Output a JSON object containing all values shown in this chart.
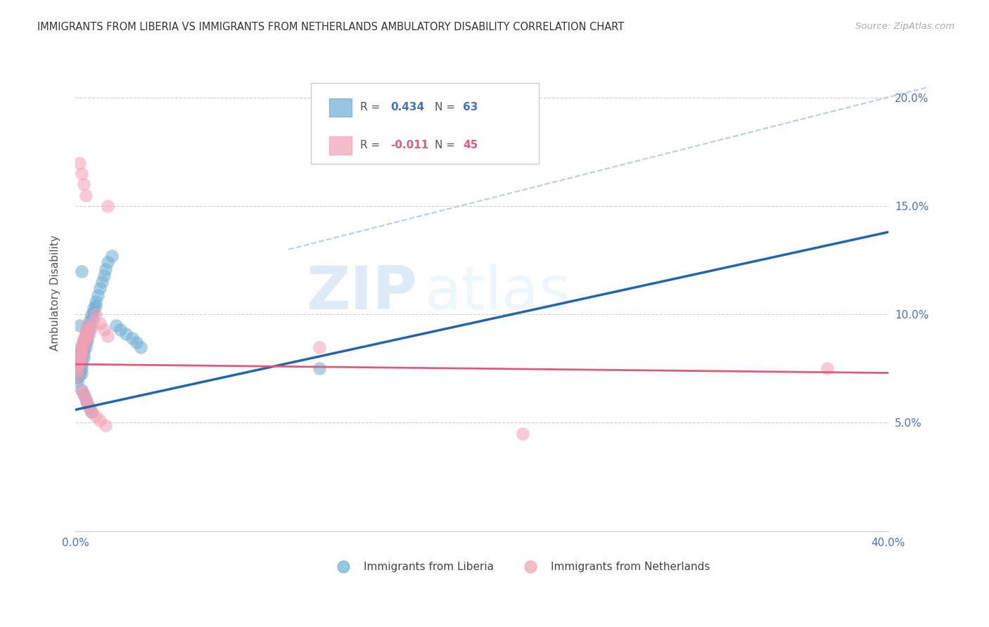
{
  "title": "IMMIGRANTS FROM LIBERIA VS IMMIGRANTS FROM NETHERLANDS AMBULATORY DISABILITY CORRELATION CHART",
  "source": "Source: ZipAtlas.com",
  "ylabel": "Ambulatory Disability",
  "xlim": [
    0.0,
    0.4
  ],
  "ylim": [
    0.0,
    0.22
  ],
  "color_liberia": "#6baed6",
  "color_liberia_line": "#2166ac",
  "color_netherlands": "#f4a0b5",
  "color_netherlands_line": "#e05a7a",
  "watermark_zip": "ZIP",
  "watermark_atlas": "atlas",
  "lib_x": [
    0.001,
    0.001,
    0.001,
    0.001,
    0.001,
    0.001,
    0.002,
    0.002,
    0.002,
    0.002,
    0.002,
    0.002,
    0.002,
    0.003,
    0.003,
    0.003,
    0.003,
    0.003,
    0.003,
    0.003,
    0.004,
    0.004,
    0.004,
    0.004,
    0.004,
    0.005,
    0.005,
    0.005,
    0.005,
    0.006,
    0.006,
    0.006,
    0.006,
    0.007,
    0.007,
    0.007,
    0.008,
    0.008,
    0.009,
    0.009,
    0.01,
    0.01,
    0.011,
    0.012,
    0.013,
    0.014,
    0.015,
    0.016,
    0.018,
    0.02,
    0.022,
    0.025,
    0.028,
    0.03,
    0.032,
    0.003,
    0.004,
    0.005,
    0.006,
    0.007,
    0.008,
    0.12,
    0.003
  ],
  "lib_y": [
    0.08,
    0.078,
    0.075,
    0.073,
    0.071,
    0.069,
    0.082,
    0.08,
    0.078,
    0.076,
    0.074,
    0.072,
    0.095,
    0.085,
    0.083,
    0.081,
    0.079,
    0.077,
    0.075,
    0.073,
    0.088,
    0.086,
    0.084,
    0.082,
    0.08,
    0.091,
    0.089,
    0.087,
    0.085,
    0.094,
    0.092,
    0.09,
    0.088,
    0.097,
    0.095,
    0.093,
    0.1,
    0.098,
    0.103,
    0.101,
    0.106,
    0.104,
    0.109,
    0.112,
    0.115,
    0.118,
    0.121,
    0.124,
    0.127,
    0.095,
    0.093,
    0.091,
    0.089,
    0.087,
    0.085,
    0.065,
    0.063,
    0.061,
    0.059,
    0.057,
    0.055,
    0.075,
    0.12
  ],
  "neth_x": [
    0.001,
    0.001,
    0.001,
    0.001,
    0.001,
    0.002,
    0.002,
    0.002,
    0.002,
    0.003,
    0.003,
    0.003,
    0.003,
    0.004,
    0.004,
    0.004,
    0.005,
    0.005,
    0.005,
    0.006,
    0.006,
    0.007,
    0.008,
    0.009,
    0.01,
    0.012,
    0.014,
    0.016,
    0.002,
    0.003,
    0.004,
    0.005,
    0.003,
    0.004,
    0.005,
    0.006,
    0.007,
    0.008,
    0.01,
    0.012,
    0.015,
    0.12,
    0.22,
    0.37,
    0.016
  ],
  "neth_y": [
    0.08,
    0.078,
    0.076,
    0.074,
    0.072,
    0.083,
    0.081,
    0.079,
    0.077,
    0.086,
    0.084,
    0.082,
    0.08,
    0.089,
    0.087,
    0.085,
    0.092,
    0.09,
    0.088,
    0.095,
    0.093,
    0.091,
    0.094,
    0.097,
    0.1,
    0.096,
    0.093,
    0.09,
    0.17,
    0.165,
    0.16,
    0.155,
    0.065,
    0.063,
    0.061,
    0.059,
    0.057,
    0.055,
    0.053,
    0.051,
    0.049,
    0.085,
    0.045,
    0.075,
    0.15
  ],
  "lib_line": [
    [
      0.0,
      0.4
    ],
    [
      0.056,
      0.138
    ]
  ],
  "neth_line": [
    [
      0.0,
      0.4
    ],
    [
      0.077,
      0.073
    ]
  ],
  "dash_line": [
    [
      0.105,
      0.42
    ],
    [
      0.13,
      0.205
    ]
  ]
}
